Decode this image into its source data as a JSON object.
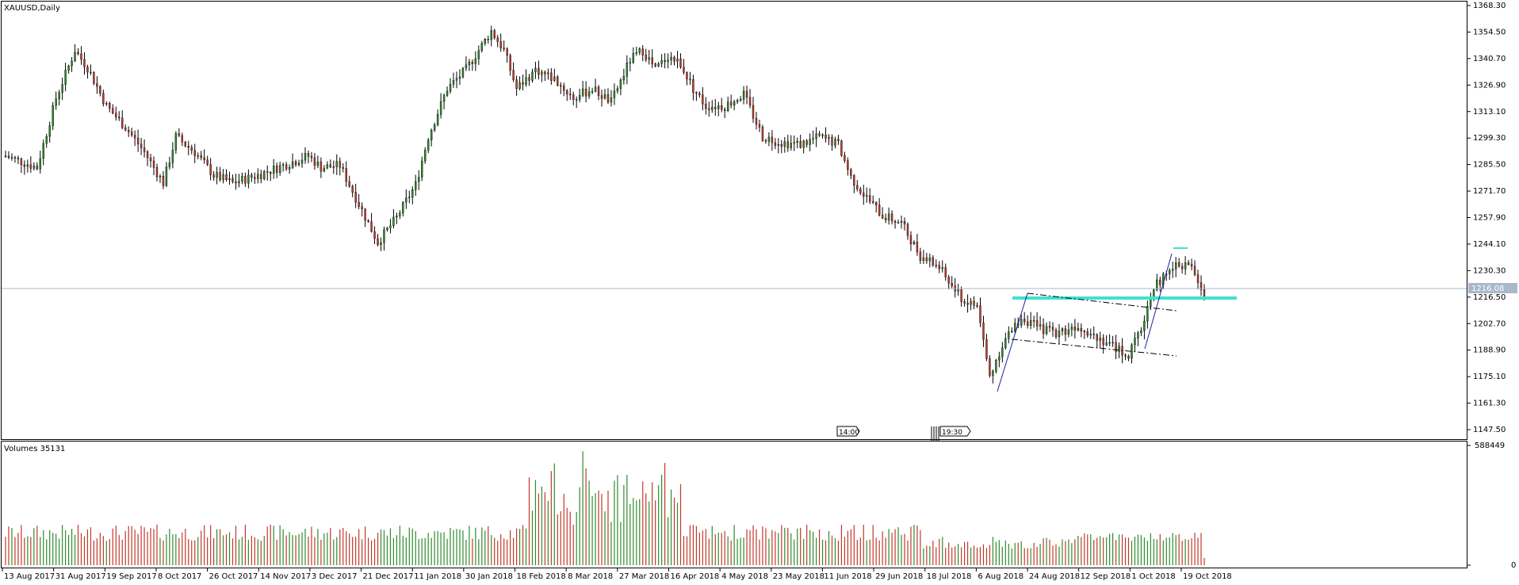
{
  "window": {
    "symbol_title": "XAUUSD,Daily",
    "volume_title": "Volumes 35131"
  },
  "price_axis": {
    "ticks": [
      "1368.30",
      "1354.50",
      "1340.70",
      "1326.90",
      "1313.10",
      "1299.30",
      "1285.50",
      "1271.70",
      "1257.90",
      "1244.10",
      "1230.30",
      "1216.50",
      "1202.70",
      "1188.90",
      "1175.10",
      "1161.30",
      "1147.50"
    ],
    "current_price": "1216.08"
  },
  "volume_axis": {
    "max_label": "588449",
    "min_label": "0"
  },
  "date_axis": [
    "13 Aug 2017",
    "31 Aug 2017",
    "19 Sep 2017",
    "8 Oct 2017",
    "26 Oct 2017",
    "14 Nov 2017",
    "3 Dec 2017",
    "21 Dec 2017",
    "11 Jan 2018",
    "30 Jan 2018",
    "18 Feb 2018",
    "8 Mar 2018",
    "27 Mar 2018",
    "16 Apr 2018",
    "4 May 2018",
    "23 May 2018",
    "11 Jun 2018",
    "29 Jun 2018",
    "18 Jul 2018",
    "6 Aug 2018",
    "24 Aug 2018",
    "12 Sep 2018",
    "1 Oct 2018",
    "19 Oct 2018"
  ],
  "events": [
    {
      "label": "14:00"
    },
    {
      "label": "19:30"
    }
  ],
  "colors": {
    "bull": "#2e8b2e",
    "bear": "#c0392b",
    "level_line": "#40e0d0",
    "price_line": "#a9b8c8",
    "trend_line": "#1e1ea0",
    "grid_border": "#000000"
  },
  "chart_data": {
    "type": "candlestick",
    "symbol": "XAUUSD",
    "timeframe": "Daily",
    "ylim": [
      1140,
      1370
    ],
    "x_range": [
      "13 Aug 2017",
      "29 Oct 2018"
    ],
    "key_prices": [
      {
        "date": "8 Sep 2017",
        "price": 1357
      },
      {
        "date": "12 Dec 2017",
        "price": 1237
      },
      {
        "date": "25 Jan 2018",
        "price": 1366
      },
      {
        "date": "11 Apr 2018",
        "price": 1365
      },
      {
        "date": "16 Aug 2018",
        "price": 1160
      },
      {
        "date": "26 Oct 2018",
        "price": 1243
      },
      {
        "date": "29 Oct 2018",
        "price": 1216
      }
    ],
    "horizontal_level": 1212,
    "volume_max": 588449
  }
}
